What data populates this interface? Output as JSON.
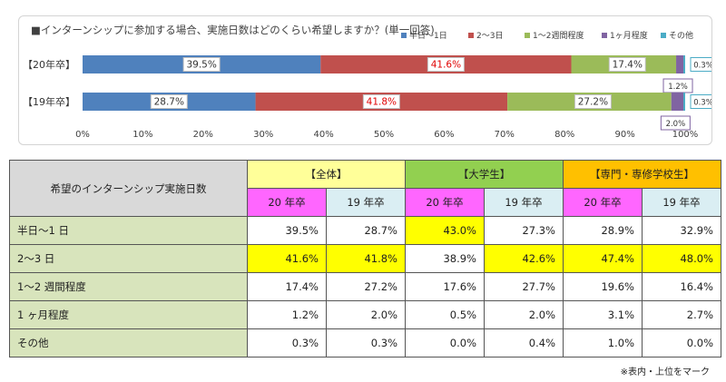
{
  "chart_data": {
    "type": "bar",
    "orientation": "horizontal",
    "stacked": true,
    "title": "■インターンシップに参加する場合、実施日数はどのくらい希望しますか？(単一回答)",
    "categories": [
      "【20年卒】",
      "【19年卒】"
    ],
    "series": [
      {
        "name": "半日～1日",
        "color": "#4f81bd",
        "values": [
          39.5,
          28.7
        ]
      },
      {
        "name": "2～3日",
        "color": "#c0504d",
        "values": [
          41.6,
          41.8
        ]
      },
      {
        "name": "1～2週間程度",
        "color": "#9bbb59",
        "values": [
          17.4,
          27.2
        ]
      },
      {
        "name": "1ヶ月程度",
        "color": "#8064a2",
        "values": [
          1.2,
          2.0
        ]
      },
      {
        "name": "その他",
        "color": "#4bacc6",
        "values": [
          0.3,
          0.3
        ]
      }
    ],
    "data_labels": [
      [
        "39.5%",
        "41.6%",
        "17.4%",
        "1.2%",
        "0.3%"
      ],
      [
        "28.7%",
        "41.8%",
        "27.2%",
        "2.0%",
        "0.3%"
      ]
    ],
    "xlim": [
      0,
      100
    ],
    "x_ticks": [
      "0%",
      "10%",
      "20%",
      "30%",
      "40%",
      "50%",
      "60%",
      "70%",
      "80%",
      "90%",
      "100%"
    ],
    "legend_position": "top-right",
    "grid": false
  },
  "table": {
    "corner_label": "希望のインターンシップ実施日数",
    "groups": [
      "【全体】",
      "【大学生】",
      "【専門・専修学校生】"
    ],
    "year_headers": [
      "20 年卒",
      "19 年卒",
      "20 年卒",
      "19 年卒",
      "20 年卒",
      "19 年卒"
    ],
    "rows": [
      {
        "label": "半日～1 日",
        "values": [
          "39.5%",
          "28.7%",
          "43.0%",
          "27.3%",
          "28.9%",
          "32.9%"
        ],
        "highlight": [
          false,
          false,
          true,
          false,
          false,
          false
        ]
      },
      {
        "label": "2～3 日",
        "values": [
          "41.6%",
          "41.8%",
          "38.9%",
          "42.6%",
          "47.4%",
          "48.0%"
        ],
        "highlight": [
          true,
          true,
          false,
          true,
          true,
          true
        ]
      },
      {
        "label": "1～2 週間程度",
        "values": [
          "17.4%",
          "27.2%",
          "17.6%",
          "27.7%",
          "19.6%",
          "16.4%"
        ],
        "highlight": [
          false,
          false,
          false,
          false,
          false,
          false
        ]
      },
      {
        "label": "1 ヶ月程度",
        "values": [
          "1.2%",
          "2.0%",
          "0.5%",
          "2.0%",
          "3.1%",
          "2.7%"
        ],
        "highlight": [
          false,
          false,
          false,
          false,
          false,
          false
        ]
      },
      {
        "label": "その他",
        "values": [
          "0.3%",
          "0.3%",
          "0.0%",
          "0.4%",
          "1.0%",
          "0.0%"
        ],
        "highlight": [
          false,
          false,
          false,
          false,
          false,
          false
        ]
      }
    ],
    "highlight_color": "#ffff00"
  },
  "footnote": "※表内・上位をマーク"
}
